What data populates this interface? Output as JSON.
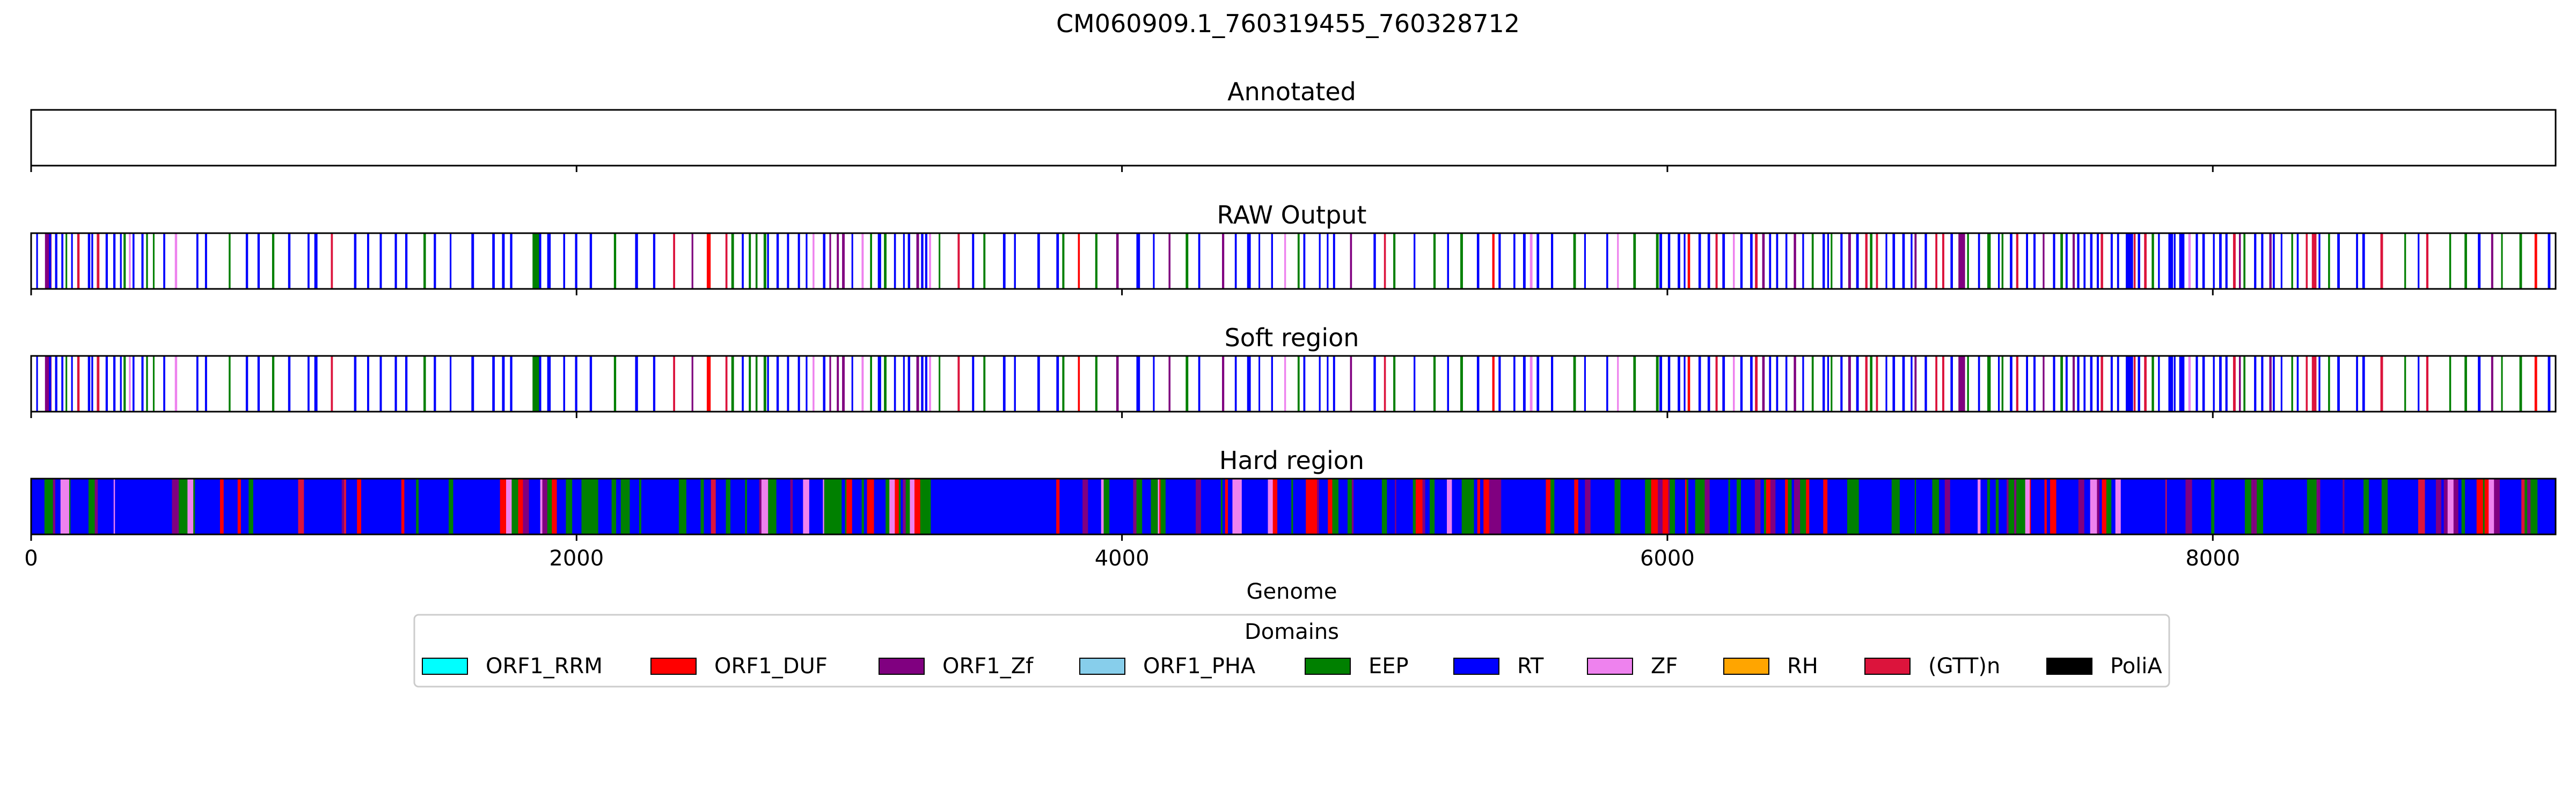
{
  "figure_title": "CM060909.1_760319455_760328712",
  "legend": {
    "title": "Domains",
    "items": [
      {
        "label": "ORF1_RRM",
        "color": "#00FFFF"
      },
      {
        "label": "ORF1_DUF",
        "color": "#FF0000"
      },
      {
        "label": "ORF1_Zf",
        "color": "#800080"
      },
      {
        "label": "ORF1_PHA",
        "color": "#87CEEB"
      },
      {
        "label": "EEP",
        "color": "#008000"
      },
      {
        "label": "RT",
        "color": "#0000FF"
      },
      {
        "label": "ZF",
        "color": "#EE82EE"
      },
      {
        "label": "RH",
        "color": "#FFA500"
      },
      {
        "label": "(GTT)n",
        "color": "#DC143C"
      },
      {
        "label": "PoliA",
        "color": "#000000"
      }
    ]
  },
  "chart_data": {
    "type": "track",
    "xlabel": "Genome",
    "xlim": [
      0,
      9257
    ],
    "xticks": [
      0,
      2000,
      4000,
      6000,
      8000
    ],
    "tracks": [
      {
        "title": "Annotated",
        "mode": "empty",
        "seed": 0
      },
      {
        "title": "RAW Output",
        "mode": "sparse",
        "seed": 11
      },
      {
        "title": "Soft region",
        "mode": "sparse",
        "seed": 11
      },
      {
        "title": "Hard region",
        "mode": "dense",
        "seed": 29
      }
    ]
  }
}
